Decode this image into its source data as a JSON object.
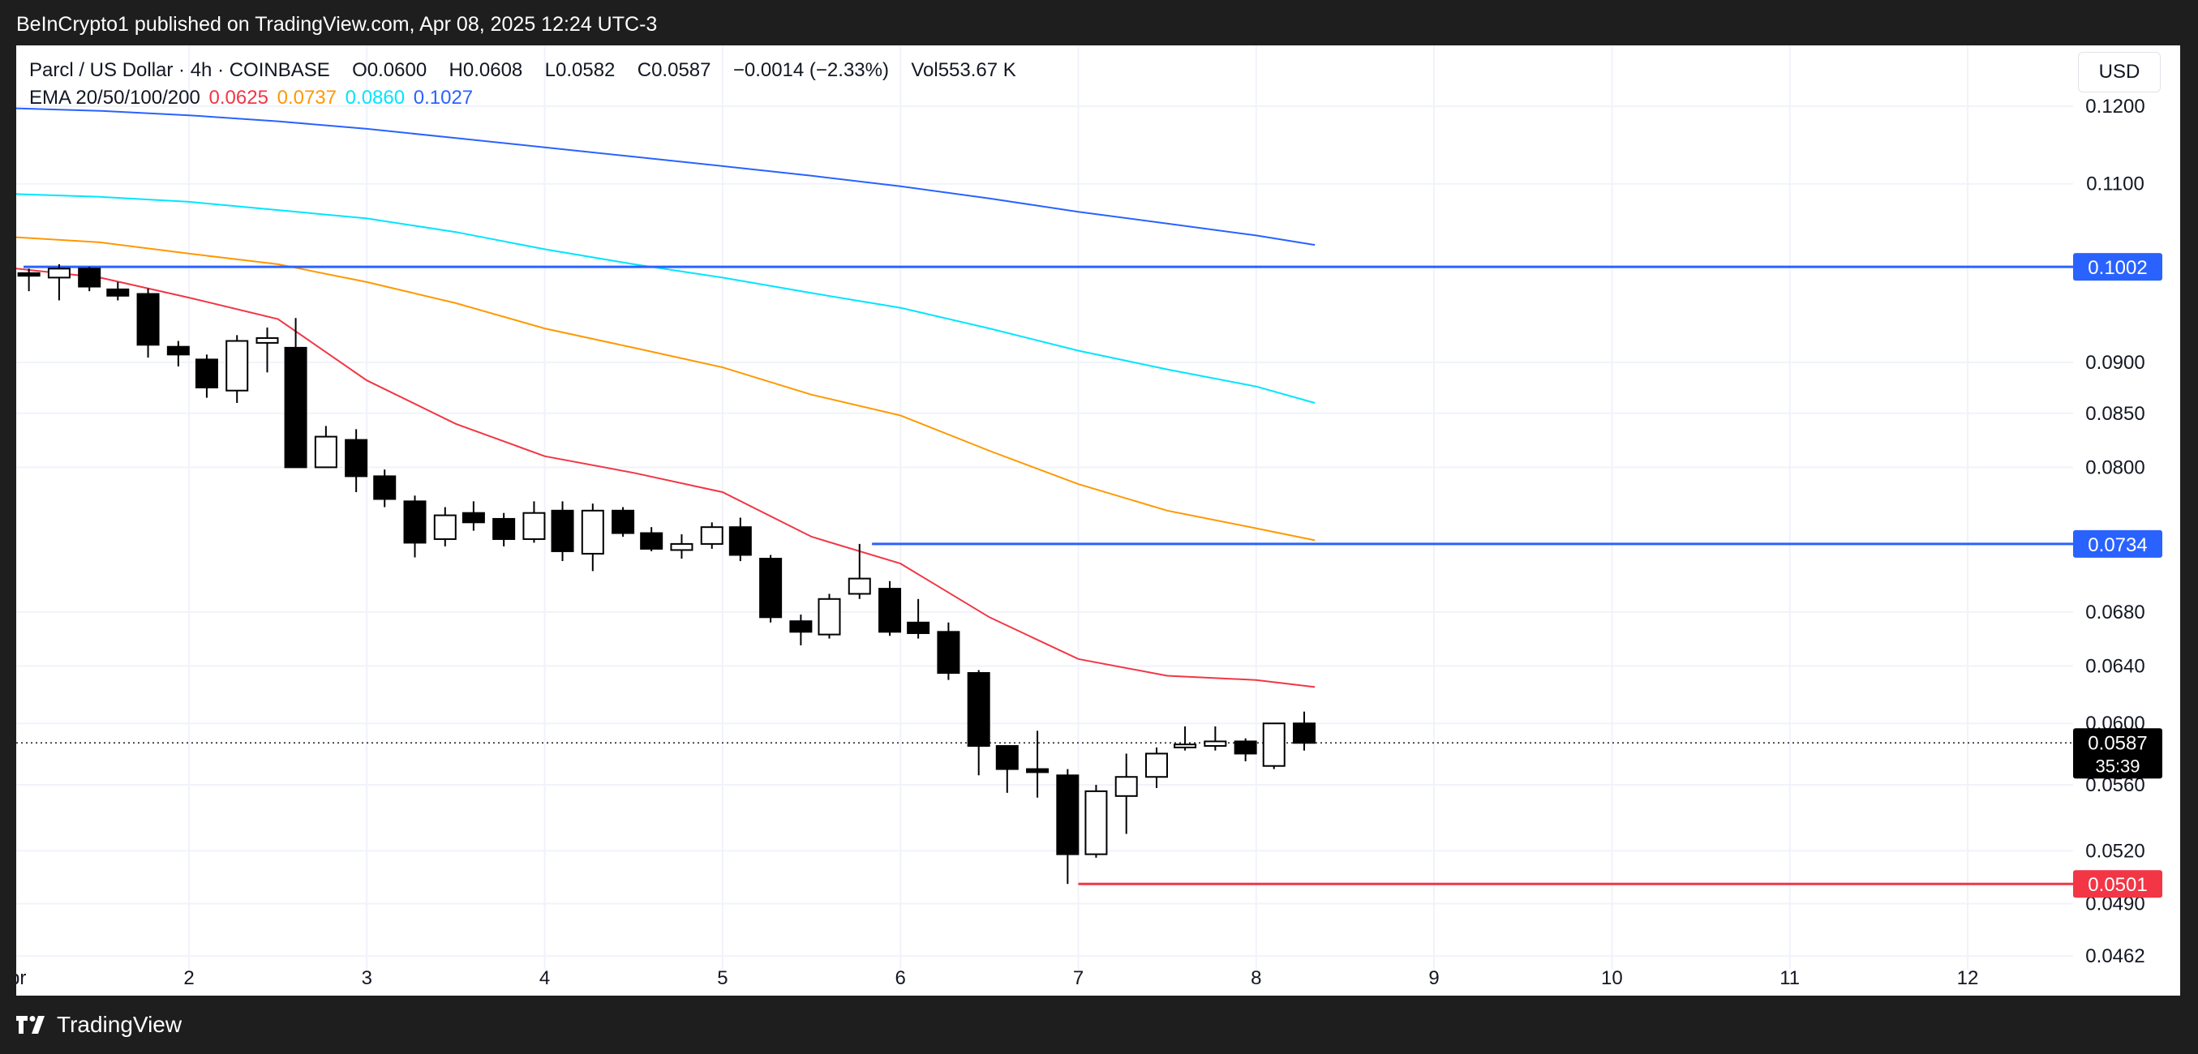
{
  "header": {
    "published_line": "BeInCrypto1 published on TradingView.com, Apr 08, 2025 12:24 UTC-3"
  },
  "legend": {
    "symbol": "Parcl / US Dollar · 4h · COINBASE",
    "ohlc": [
      {
        "label": "O",
        "value": "0.0600"
      },
      {
        "label": "H",
        "value": "0.0608"
      },
      {
        "label": "L",
        "value": "0.0582"
      },
      {
        "label": "C",
        "value": "0.0587"
      }
    ],
    "change": "−0.0014 (−2.33%)",
    "volume_label": "Vol",
    "volume_value": "553.67 K",
    "ema_label": "EMA 20/50/100/200",
    "ema_values": [
      {
        "value": "0.0625",
        "color": "#f23645"
      },
      {
        "value": "0.0737",
        "color": "#ff9800"
      },
      {
        "value": "0.0860",
        "color": "#00e5ff"
      },
      {
        "value": "0.1027",
        "color": "#2962ff"
      }
    ]
  },
  "currency_button": "USD",
  "footer": {
    "brand": "TradingView"
  },
  "colors": {
    "up_body": "#ffffff",
    "down_body": "#000000",
    "candle_border": "#000000",
    "ema20": "#f23645",
    "ema50": "#ff9800",
    "ema100": "#00e5ff",
    "ema200": "#2962ff",
    "resistance": "#2962ff",
    "support": "#f23645",
    "last_price_bg": "#000000"
  },
  "chart_data": {
    "type": "candlestick",
    "interval": "4h",
    "x_tick_labels": [
      "Apr",
      "2",
      "3",
      "4",
      "5",
      "6",
      "7",
      "8",
      "9",
      "10",
      "11",
      "12"
    ],
    "x_range_days": [
      0.94,
      12.6
    ],
    "y_scale": "log",
    "y_range": [
      0.0455,
      0.1285
    ],
    "y_tick_labels": [
      "0.1200",
      "0.1100",
      "0.0900",
      "0.0850",
      "0.0800",
      "0.0680",
      "0.0640",
      "0.0600",
      "0.0560",
      "0.0520",
      "0.0490",
      "0.0462"
    ],
    "grid": true,
    "candles": [
      {
        "t": 0.94,
        "o": 0.099,
        "h": 0.1005,
        "l": 0.0975,
        "c": 0.1
      },
      {
        "t": 1.1,
        "o": 0.0995,
        "h": 0.1,
        "l": 0.0975,
        "c": 0.0992
      },
      {
        "t": 1.27,
        "o": 0.099,
        "h": 0.1005,
        "l": 0.0965,
        "c": 0.1
      },
      {
        "t": 1.44,
        "o": 0.1,
        "h": 0.1002,
        "l": 0.0975,
        "c": 0.098
      },
      {
        "t": 1.6,
        "o": 0.0977,
        "h": 0.0985,
        "l": 0.0965,
        "c": 0.097
      },
      {
        "t": 1.77,
        "o": 0.0972,
        "h": 0.0978,
        "l": 0.0905,
        "c": 0.0918
      },
      {
        "t": 1.94,
        "o": 0.0916,
        "h": 0.0922,
        "l": 0.0896,
        "c": 0.0908
      },
      {
        "t": 2.1,
        "o": 0.0903,
        "h": 0.0908,
        "l": 0.0865,
        "c": 0.0875
      },
      {
        "t": 2.27,
        "o": 0.0872,
        "h": 0.0928,
        "l": 0.086,
        "c": 0.0922
      },
      {
        "t": 2.44,
        "o": 0.092,
        "h": 0.0936,
        "l": 0.089,
        "c": 0.0925
      },
      {
        "t": 2.6,
        "o": 0.0915,
        "h": 0.0946,
        "l": 0.08,
        "c": 0.08
      },
      {
        "t": 2.77,
        "o": 0.08,
        "h": 0.0838,
        "l": 0.08,
        "c": 0.0828
      },
      {
        "t": 2.94,
        "o": 0.0825,
        "h": 0.0835,
        "l": 0.0778,
        "c": 0.0792
      },
      {
        "t": 3.1,
        "o": 0.0792,
        "h": 0.0798,
        "l": 0.0765,
        "c": 0.0772
      },
      {
        "t": 3.27,
        "o": 0.077,
        "h": 0.0775,
        "l": 0.0723,
        "c": 0.0735
      },
      {
        "t": 3.44,
        "o": 0.0738,
        "h": 0.0765,
        "l": 0.0732,
        "c": 0.0758
      },
      {
        "t": 3.6,
        "o": 0.076,
        "h": 0.077,
        "l": 0.0745,
        "c": 0.0752
      },
      {
        "t": 3.77,
        "o": 0.0755,
        "h": 0.076,
        "l": 0.0732,
        "c": 0.0738
      },
      {
        "t": 3.94,
        "o": 0.0738,
        "h": 0.077,
        "l": 0.0735,
        "c": 0.076
      },
      {
        "t": 4.1,
        "o": 0.0762,
        "h": 0.077,
        "l": 0.072,
        "c": 0.0728
      },
      {
        "t": 4.27,
        "o": 0.0726,
        "h": 0.0768,
        "l": 0.0712,
        "c": 0.0762
      },
      {
        "t": 4.44,
        "o": 0.0762,
        "h": 0.0765,
        "l": 0.074,
        "c": 0.0743
      },
      {
        "t": 4.6,
        "o": 0.0743,
        "h": 0.0748,
        "l": 0.0728,
        "c": 0.073
      },
      {
        "t": 4.77,
        "o": 0.0729,
        "h": 0.0742,
        "l": 0.0722,
        "c": 0.0734
      },
      {
        "t": 4.94,
        "o": 0.0734,
        "h": 0.0752,
        "l": 0.073,
        "c": 0.0748
      },
      {
        "t": 5.1,
        "o": 0.0748,
        "h": 0.0756,
        "l": 0.072,
        "c": 0.0725
      },
      {
        "t": 5.27,
        "o": 0.0722,
        "h": 0.0725,
        "l": 0.0672,
        "c": 0.0676
      },
      {
        "t": 5.44,
        "o": 0.0673,
        "h": 0.0678,
        "l": 0.0655,
        "c": 0.0665
      },
      {
        "t": 5.6,
        "o": 0.0663,
        "h": 0.0694,
        "l": 0.066,
        "c": 0.069
      },
      {
        "t": 5.77,
        "o": 0.0694,
        "h": 0.0734,
        "l": 0.069,
        "c": 0.0706
      },
      {
        "t": 5.94,
        "o": 0.0698,
        "h": 0.0704,
        "l": 0.0662,
        "c": 0.0665
      },
      {
        "t": 6.1,
        "o": 0.0672,
        "h": 0.069,
        "l": 0.066,
        "c": 0.0664
      },
      {
        "t": 6.27,
        "o": 0.0665,
        "h": 0.0672,
        "l": 0.063,
        "c": 0.0635
      },
      {
        "t": 6.44,
        "o": 0.0635,
        "h": 0.0637,
        "l": 0.0566,
        "c": 0.0585
      },
      {
        "t": 6.6,
        "o": 0.0585,
        "h": 0.0585,
        "l": 0.0555,
        "c": 0.057
      },
      {
        "t": 6.77,
        "o": 0.057,
        "h": 0.0595,
        "l": 0.0552,
        "c": 0.0568
      },
      {
        "t": 6.94,
        "o": 0.0566,
        "h": 0.057,
        "l": 0.0501,
        "c": 0.0518
      },
      {
        "t": 7.1,
        "o": 0.0518,
        "h": 0.056,
        "l": 0.0516,
        "c": 0.0556
      },
      {
        "t": 7.27,
        "o": 0.0553,
        "h": 0.058,
        "l": 0.053,
        "c": 0.0565
      },
      {
        "t": 7.44,
        "o": 0.0565,
        "h": 0.0584,
        "l": 0.0558,
        "c": 0.058
      },
      {
        "t": 7.6,
        "o": 0.0584,
        "h": 0.0598,
        "l": 0.0582,
        "c": 0.0586
      },
      {
        "t": 7.77,
        "o": 0.0585,
        "h": 0.0598,
        "l": 0.0582,
        "c": 0.0588
      },
      {
        "t": 7.94,
        "o": 0.0588,
        "h": 0.059,
        "l": 0.0575,
        "c": 0.058
      },
      {
        "t": 8.1,
        "o": 0.0572,
        "h": 0.06,
        "l": 0.057,
        "c": 0.06
      },
      {
        "t": 8.27,
        "o": 0.06,
        "h": 0.0608,
        "l": 0.0582,
        "c": 0.0587
      }
    ],
    "ema_series": [
      {
        "name": "EMA 20",
        "color": "#f23645",
        "points": [
          [
            0.94,
            0.1002
          ],
          [
            1.5,
            0.099
          ],
          [
            2.0,
            0.0968
          ],
          [
            2.5,
            0.0945
          ],
          [
            3.0,
            0.0882
          ],
          [
            3.5,
            0.084
          ],
          [
            4.0,
            0.081
          ],
          [
            4.5,
            0.0795
          ],
          [
            5.0,
            0.0778
          ],
          [
            5.5,
            0.074
          ],
          [
            6.0,
            0.0718
          ],
          [
            6.5,
            0.0676
          ],
          [
            7.0,
            0.0645
          ],
          [
            7.5,
            0.0633
          ],
          [
            8.0,
            0.063
          ],
          [
            8.33,
            0.0625
          ]
        ]
      },
      {
        "name": "EMA 50",
        "color": "#ff9800",
        "points": [
          [
            0.94,
            0.1037
          ],
          [
            1.5,
            0.103
          ],
          [
            2.0,
            0.1017
          ],
          [
            2.5,
            0.1005
          ],
          [
            3.0,
            0.0985
          ],
          [
            3.5,
            0.0962
          ],
          [
            4.0,
            0.0935
          ],
          [
            4.5,
            0.0915
          ],
          [
            5.0,
            0.0895
          ],
          [
            5.5,
            0.0868
          ],
          [
            6.0,
            0.0848
          ],
          [
            6.5,
            0.0815
          ],
          [
            7.0,
            0.0785
          ],
          [
            7.5,
            0.0762
          ],
          [
            8.0,
            0.0747
          ],
          [
            8.33,
            0.0737
          ]
        ]
      },
      {
        "name": "EMA 100",
        "color": "#00e5ff",
        "points": [
          [
            0.94,
            0.1088
          ],
          [
            1.5,
            0.1084
          ],
          [
            2.0,
            0.1078
          ],
          [
            2.5,
            0.1068
          ],
          [
            3.0,
            0.1058
          ],
          [
            3.5,
            0.1042
          ],
          [
            4.0,
            0.1022
          ],
          [
            4.5,
            0.1005
          ],
          [
            5.0,
            0.099
          ],
          [
            5.5,
            0.0973
          ],
          [
            6.0,
            0.0957
          ],
          [
            6.5,
            0.0935
          ],
          [
            7.0,
            0.0912
          ],
          [
            7.5,
            0.0893
          ],
          [
            8.0,
            0.0876
          ],
          [
            8.33,
            0.086
          ]
        ]
      },
      {
        "name": "EMA 200",
        "color": "#2962ff",
        "points": [
          [
            0.94,
            0.1198
          ],
          [
            1.5,
            0.1194
          ],
          [
            2.0,
            0.1188
          ],
          [
            2.5,
            0.118
          ],
          [
            3.0,
            0.117
          ],
          [
            3.5,
            0.1158
          ],
          [
            4.0,
            0.1146
          ],
          [
            4.5,
            0.1134
          ],
          [
            5.0,
            0.1122
          ],
          [
            5.5,
            0.111
          ],
          [
            6.0,
            0.1097
          ],
          [
            6.5,
            0.1082
          ],
          [
            7.0,
            0.1066
          ],
          [
            7.5,
            0.1052
          ],
          [
            8.0,
            0.1038
          ],
          [
            8.33,
            0.1027
          ]
        ]
      }
    ],
    "horizontal_lines": [
      {
        "value": 0.1002,
        "label": "0.1002",
        "color": "#2962ff",
        "from": 1.07
      },
      {
        "value": 0.0734,
        "label": "0.0734",
        "color": "#2962ff",
        "from": 5.84
      },
      {
        "value": 0.0501,
        "label": "0.0501",
        "color": "#f23645",
        "from": 7.0
      }
    ],
    "last_price": {
      "value": 0.0587,
      "label": "0.0587",
      "countdown": "35:39"
    }
  }
}
